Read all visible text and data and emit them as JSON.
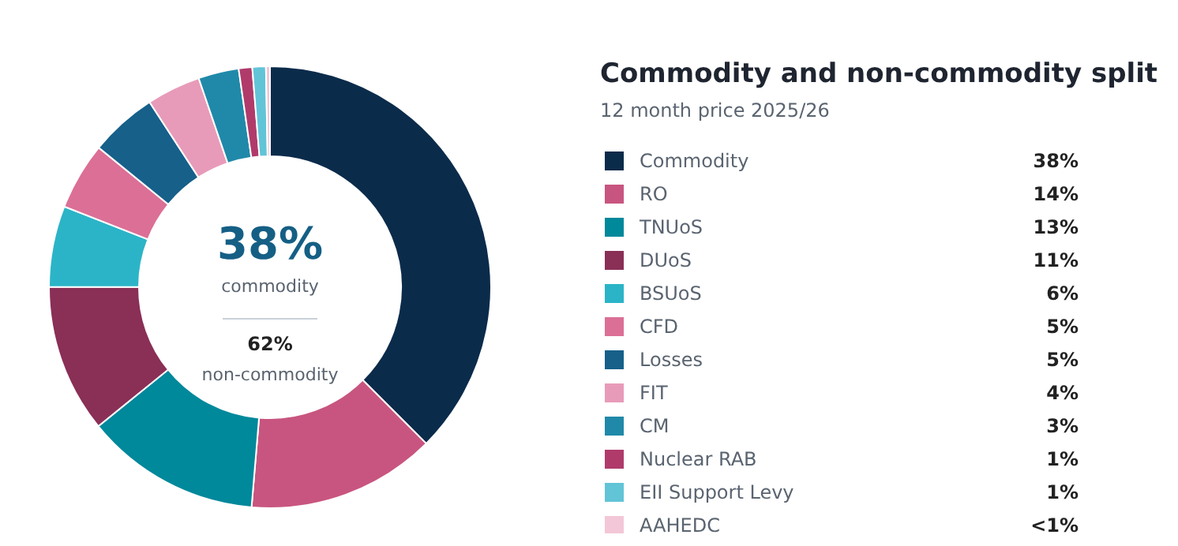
{
  "chart_data": {
    "type": "donut",
    "title": "Commodity and non-commodity split",
    "subtitle": "12 month price 2025/26",
    "categories": [
      "Commodity",
      "RO",
      "TNUoS",
      "DUoS",
      "BSUoS",
      "CFD",
      "Losses",
      "FIT",
      "CM",
      "Nuclear RAB",
      "EII Support Levy",
      "AAHEDC"
    ],
    "values": [
      38,
      14,
      13,
      11,
      6,
      5,
      5,
      4,
      3,
      1,
      1,
      0.3
    ],
    "colors": [
      "#0b2b4b",
      "#c8557f",
      "#00889b",
      "#8a2f56",
      "#2bb4c7",
      "#dc6f96",
      "#16608a",
      "#e89bb9",
      "#2089a9",
      "#b03b6b",
      "#62c4d7",
      "#f3c7d7"
    ],
    "value_labels": [
      "38%",
      "14%",
      "13%",
      "11%",
      "6%",
      "5%",
      "5%",
      "4%",
      "3%",
      "1%",
      "1%",
      "<1%"
    ],
    "annotations": [
      "38%",
      "commodity",
      "62%",
      "non-commodity"
    ],
    "legend": "right"
  }
}
